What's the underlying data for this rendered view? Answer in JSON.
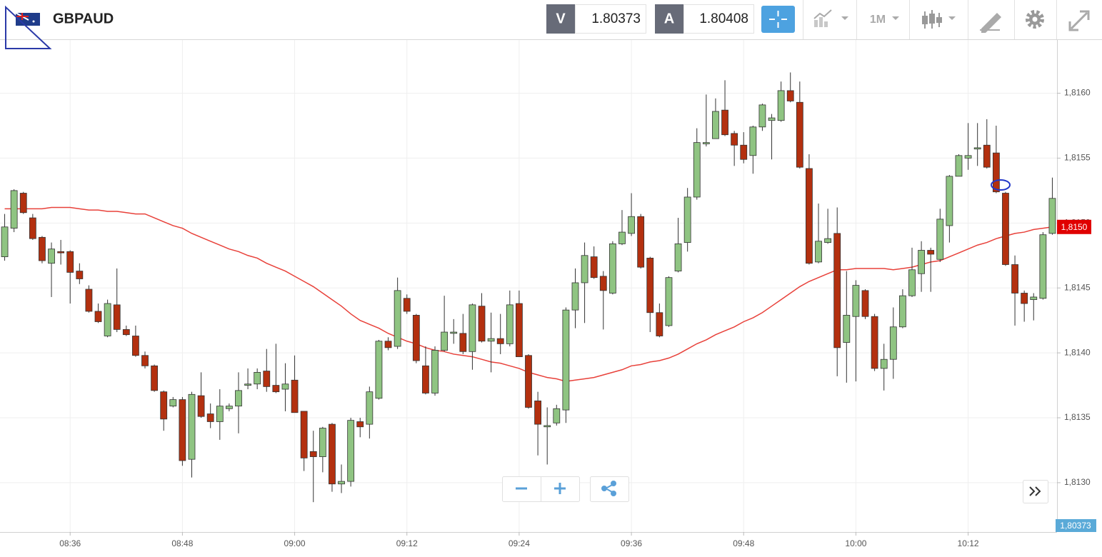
{
  "toolbar": {
    "symbol": "GBPAUD",
    "bid_label": "V",
    "bid": "1.80373",
    "ask_label": "A",
    "ask": "1.80408",
    "timeframe": "1M"
  },
  "chart_data": {
    "type": "candlestick",
    "categories": [
      null,
      null,
      null,
      null,
      null,
      null,
      null,
      "08:36",
      null,
      null,
      null,
      null,
      null,
      null,
      null,
      null,
      null,
      null,
      null,
      "08:48",
      null,
      null,
      null,
      null,
      null,
      null,
      null,
      null,
      null,
      null,
      null,
      "09:00",
      null,
      null,
      null,
      null,
      null,
      null,
      null,
      null,
      null,
      null,
      null,
      "09:12",
      null,
      null,
      null,
      null,
      null,
      null,
      null,
      null,
      null,
      null,
      null,
      "09:24",
      null,
      null,
      null,
      null,
      null,
      null,
      null,
      null,
      null,
      null,
      null,
      "09:36",
      null,
      null,
      null,
      null,
      null,
      null,
      null,
      null,
      null,
      null,
      null,
      "09:48",
      null,
      null,
      null,
      null,
      null,
      null,
      null,
      null,
      null,
      null,
      null,
      "10:00",
      null,
      null,
      null,
      null,
      null,
      null,
      null,
      null,
      null,
      null,
      null,
      "10:12",
      null,
      null,
      null,
      null,
      null,
      null,
      null,
      null,
      null
    ],
    "open": [
      1.81474,
      1.81496,
      1.81523,
      1.81504,
      1.81489,
      1.81469,
      1.81478,
      1.81478,
      1.81463,
      1.81449,
      1.81432,
      1.81413,
      1.81437,
      1.81418,
      1.81413,
      1.81398,
      1.8139,
      1.8137,
      1.81359,
      1.81364,
      1.81318,
      1.81367,
      1.81353,
      1.81347,
      1.81357,
      1.81359,
      1.81375,
      1.81376,
      1.81386,
      1.81375,
      1.81372,
      1.81379,
      1.81355,
      1.81324,
      1.8132,
      1.81345,
      1.81299,
      1.81301,
      1.81347,
      1.81345,
      1.81365,
      1.81409,
      1.81405,
      1.81442,
      1.81429,
      1.8139,
      1.81369,
      1.81402,
      1.81415,
      1.81415,
      1.81401,
      1.81436,
      1.81409,
      1.81411,
      1.81407,
      1.81438,
      1.81398,
      1.81363,
      1.81343,
      1.81346,
      1.81356,
      1.81433,
      1.81454,
      1.81474,
      1.81459,
      1.81446,
      1.81484,
      1.81492,
      1.81505,
      1.81473,
      1.81431,
      1.81421,
      1.81463,
      1.81485,
      1.8152,
      1.81561,
      1.81565,
      1.81587,
      1.81569,
      1.8156,
      1.81552,
      1.81574,
      1.81579,
      1.81579,
      1.81602,
      1.81593,
      1.81542,
      1.8147,
      1.81485,
      1.81492,
      1.81408,
      1.81428,
      1.81448,
      1.81428,
      1.81388,
      1.81395,
      1.8142,
      1.81444,
      1.81461,
      1.81479,
      1.81472,
      1.81498,
      1.81536,
      1.8155,
      1.81557,
      1.8156,
      1.81554,
      1.81523,
      1.81468,
      1.81446,
      1.81441,
      1.81442,
      1.81492
    ],
    "high": [
      1.81507,
      1.81526,
      1.81524,
      1.81507,
      1.8149,
      1.81485,
      1.81487,
      1.81479,
      1.81469,
      1.81452,
      1.81438,
      1.81441,
      1.81465,
      1.81421,
      1.81421,
      1.81401,
      1.81391,
      1.81371,
      1.81366,
      1.81366,
      1.8137,
      1.81385,
      1.81361,
      1.81372,
      1.81361,
      1.81385,
      1.81388,
      1.81388,
      1.81403,
      1.81407,
      1.81392,
      1.81398,
      1.81355,
      1.8134,
      1.81343,
      1.81346,
      1.81314,
      1.8135,
      1.8135,
      1.81374,
      1.8141,
      1.81412,
      1.81458,
      1.81445,
      1.8143,
      1.81405,
      1.81405,
      1.81444,
      1.81426,
      1.8143,
      1.81438,
      1.81446,
      1.81431,
      1.8143,
      1.81448,
      1.81448,
      1.81399,
      1.8137,
      1.81358,
      1.8136,
      1.81435,
      1.81465,
      1.81485,
      1.81482,
      1.81463,
      1.81486,
      1.8151,
      1.81523,
      1.81507,
      1.81474,
      1.81438,
      1.81459,
      1.81504,
      1.81527,
      1.81573,
      1.81599,
      1.81596,
      1.8161,
      1.81571,
      1.8157,
      1.81575,
      1.81592,
      1.81584,
      1.81609,
      1.81616,
      1.81609,
      1.81553,
      1.81515,
      1.81511,
      1.81512,
      1.81463,
      1.81456,
      1.81449,
      1.8143,
      1.81407,
      1.81435,
      1.81449,
      1.81481,
      1.81486,
      1.81481,
      1.81511,
      1.81537,
      1.81553,
      1.81577,
      1.81577,
      1.8158,
      1.81575,
      1.81524,
      1.81475,
      1.81448,
      1.81446,
      1.81493,
      1.81535
    ],
    "low": [
      1.81471,
      1.81493,
      1.81507,
      1.81487,
      1.81469,
      1.81443,
      1.81468,
      1.81438,
      1.81453,
      1.81431,
      1.81423,
      1.81412,
      1.81416,
      1.81413,
      1.81397,
      1.81388,
      1.8137,
      1.8134,
      1.81358,
      1.81313,
      1.81304,
      1.8135,
      1.81342,
      1.81333,
      1.81355,
      1.81338,
      1.81372,
      1.81372,
      1.8137,
      1.81369,
      1.81355,
      1.81354,
      1.81309,
      1.81285,
      1.81308,
      1.81293,
      1.81292,
      1.81297,
      1.81335,
      1.81334,
      1.81364,
      1.81402,
      1.81403,
      1.8143,
      1.81392,
      1.81368,
      1.81367,
      1.81401,
      1.81407,
      1.81399,
      1.81387,
      1.81408,
      1.81385,
      1.81399,
      1.81405,
      1.81397,
      1.81357,
      1.81321,
      1.81314,
      1.81344,
      1.81346,
      1.81419,
      1.81423,
      1.81457,
      1.81418,
      1.81445,
      1.81483,
      1.8149,
      1.81465,
      1.81416,
      1.81412,
      1.8142,
      1.81462,
      1.81478,
      1.81518,
      1.81559,
      1.81565,
      1.81567,
      1.81544,
      1.81546,
      1.81538,
      1.81571,
      1.81549,
      1.81578,
      1.81593,
      1.81542,
      1.81468,
      1.81469,
      1.81484,
      1.81382,
      1.81377,
      1.81378,
      1.81426,
      1.81386,
      1.81371,
      1.8138,
      1.81419,
      1.81443,
      1.81447,
      1.81447,
      1.8147,
      1.81485,
      1.81536,
      1.81541,
      1.81544,
      1.81542,
      1.81523,
      1.81467,
      1.81421,
      1.81424,
      1.81425,
      1.81441,
      1.81491
    ],
    "close": [
      1.81497,
      1.81525,
      1.81508,
      1.81488,
      1.81471,
      1.8148,
      1.81477,
      1.81462,
      1.81457,
      1.81432,
      1.81424,
      1.81438,
      1.81418,
      1.81414,
      1.81398,
      1.8139,
      1.81371,
      1.81349,
      1.81364,
      1.81317,
      1.81368,
      1.81351,
      1.81347,
      1.81359,
      1.81359,
      1.81371,
      1.81376,
      1.81385,
      1.81374,
      1.8137,
      1.81376,
      1.81354,
      1.81319,
      1.8132,
      1.81342,
      1.81299,
      1.81301,
      1.81348,
      1.81343,
      1.8137,
      1.81409,
      1.81404,
      1.81448,
      1.81432,
      1.81394,
      1.81369,
      1.81402,
      1.81416,
      1.81416,
      1.81401,
      1.81437,
      1.81409,
      1.81411,
      1.81407,
      1.81437,
      1.81397,
      1.81358,
      1.81345,
      1.81344,
      1.81357,
      1.81433,
      1.81454,
      1.81475,
      1.81458,
      1.81448,
      1.81484,
      1.81493,
      1.81505,
      1.81466,
      1.81431,
      1.81413,
      1.81458,
      1.81484,
      1.8152,
      1.81562,
      1.81562,
      1.81586,
      1.81568,
      1.8156,
      1.81549,
      1.81574,
      1.81591,
      1.81581,
      1.81602,
      1.81594,
      1.81543,
      1.81469,
      1.81486,
      1.81488,
      1.81404,
      1.81429,
      1.81452,
      1.81428,
      1.81388,
      1.81395,
      1.8142,
      1.81444,
      1.81464,
      1.81479,
      1.81476,
      1.81503,
      1.81536,
      1.81552,
      1.81552,
      1.81558,
      1.81543,
      1.81524,
      1.81468,
      1.81446,
      1.81438,
      1.81443,
      1.81491,
      1.81519
    ],
    "up_color": "#8fc482",
    "down_color": "#b3300f",
    "ylim": [
      1.81262,
      1.81641
    ],
    "yticks": [
      {
        "value": 1.813,
        "label": "1,8130"
      },
      {
        "value": 1.8135,
        "label": "1,8135"
      },
      {
        "value": 1.814,
        "label": "1,8140"
      },
      {
        "value": 1.8145,
        "label": "1,8145"
      },
      {
        "value": 1.815,
        "label": "1,8150"
      },
      {
        "value": 1.8155,
        "label": "1,8155"
      },
      {
        "value": 1.816,
        "label": "1,8160"
      }
    ],
    "grid": true,
    "overlays": [
      {
        "type": "line",
        "color": "#e8413a",
        "last_value_label": "1,8150",
        "label_color": "#e00000",
        "values": [
          1.81511,
          1.81511,
          1.81511,
          1.81511,
          1.81511,
          1.81512,
          1.81512,
          1.81512,
          1.81511,
          1.8151,
          1.8151,
          1.81509,
          1.81509,
          1.81508,
          1.81507,
          1.81507,
          1.81504,
          1.81501,
          1.81498,
          1.81496,
          1.81492,
          1.81489,
          1.81486,
          1.81483,
          1.8148,
          1.81478,
          1.81475,
          1.81473,
          1.81469,
          1.81466,
          1.81463,
          1.81459,
          1.81455,
          1.81451,
          1.81446,
          1.81441,
          1.81436,
          1.8143,
          1.81425,
          1.81422,
          1.81419,
          1.81415,
          1.81412,
          1.81409,
          1.81407,
          1.81404,
          1.81402,
          1.81401,
          1.81399,
          1.81398,
          1.81397,
          1.81395,
          1.81393,
          1.81392,
          1.8139,
          1.81388,
          1.81385,
          1.81383,
          1.81381,
          1.8138,
          1.81378,
          1.81379,
          1.8138,
          1.81381,
          1.81383,
          1.81385,
          1.81387,
          1.8139,
          1.81391,
          1.81393,
          1.81394,
          1.81396,
          1.81399,
          1.81403,
          1.81407,
          1.8141,
          1.81414,
          1.81417,
          1.8142,
          1.81424,
          1.81427,
          1.81431,
          1.81436,
          1.81441,
          1.81446,
          1.81451,
          1.81455,
          1.81458,
          1.81461,
          1.81464,
          1.81464,
          1.81465,
          1.81465,
          1.81465,
          1.81465,
          1.81464,
          1.81465,
          1.81466,
          1.81468,
          1.8147,
          1.81471,
          1.81474,
          1.81477,
          1.8148,
          1.81483,
          1.81485,
          1.81488,
          1.8149,
          1.81492,
          1.81493,
          1.81495,
          1.81496,
          1.81497
        ]
      }
    ],
    "price_badge": "1,80373"
  }
}
